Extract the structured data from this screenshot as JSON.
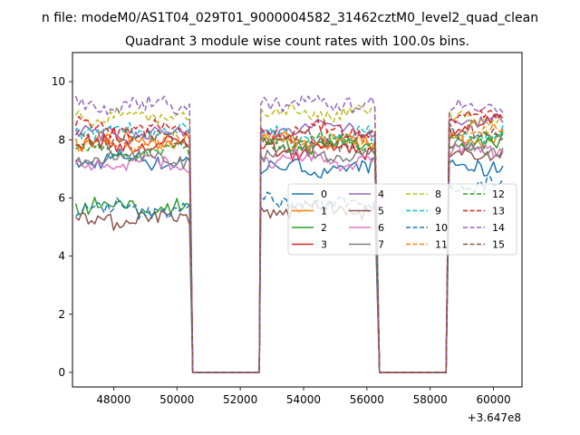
{
  "chart_data": {
    "type": "line",
    "suptitle": "n file: modeM0/AS1T04_029T01_9000004582_31462cztM0_level2_quad_clean",
    "title": "Quadrant 3 module wise count rates with 100.0s bins.",
    "xlabel": "",
    "ylabel": "",
    "x_offset_label": "+3.647e8",
    "xlim": [
      46700,
      60900
    ],
    "ylim": [
      -0.5,
      11.0
    ],
    "xticks": [
      48000,
      50000,
      52000,
      54000,
      56000,
      58000,
      60000
    ],
    "xtick_labels": [
      "48000",
      "50000",
      "52000",
      "54000",
      "56000",
      "58000",
      "60000"
    ],
    "yticks": [
      0,
      2,
      4,
      6,
      8,
      10
    ],
    "ytick_labels": [
      "0",
      "2",
      "4",
      "6",
      "8",
      "10"
    ],
    "grid": false,
    "legend_location": "center-right",
    "legend_columns": 4,
    "segments": [
      {
        "x_start": 46800,
        "x_end": 50400,
        "active": true
      },
      {
        "x_start": 50500,
        "x_end": 52600,
        "active": false
      },
      {
        "x_start": 52650,
        "x_end": 56300,
        "active": true
      },
      {
        "x_start": 56400,
        "x_end": 58500,
        "active": false
      },
      {
        "x_start": 58600,
        "x_end": 60300,
        "active": true
      }
    ],
    "series": [
      {
        "name": "0",
        "color": "#1f77b4",
        "dash": "solid",
        "levels": [
          7.3,
          7.0,
          7.1
        ]
      },
      {
        "name": "1",
        "color": "#ff7f0e",
        "dash": "solid",
        "levels": [
          8.0,
          7.9,
          8.1
        ]
      },
      {
        "name": "2",
        "color": "#2ca02c",
        "dash": "solid",
        "levels": [
          5.7,
          7.8,
          7.9
        ]
      },
      {
        "name": "3",
        "color": "#d62728",
        "dash": "solid",
        "levels": [
          7.8,
          7.7,
          8.5
        ]
      },
      {
        "name": "4",
        "color": "#9467bd",
        "dash": "solid",
        "levels": [
          8.2,
          8.4,
          8.6
        ]
      },
      {
        "name": "5",
        "color": "#8c564b",
        "dash": "solid",
        "levels": [
          5.3,
          5.6,
          7.4
        ]
      },
      {
        "name": "6",
        "color": "#e377c2",
        "dash": "solid",
        "levels": [
          7.2,
          7.3,
          7.6
        ]
      },
      {
        "name": "7",
        "color": "#7f7f7f",
        "dash": "solid",
        "levels": [
          7.4,
          7.5,
          7.7
        ]
      },
      {
        "name": "8",
        "color": "#bcbd22",
        "dash": "dashed",
        "levels": [
          8.8,
          8.9,
          8.7
        ]
      },
      {
        "name": "9",
        "color": "#17becf",
        "dash": "dashed",
        "levels": [
          8.3,
          8.1,
          8.2
        ]
      },
      {
        "name": "10",
        "color": "#1f77b4",
        "dash": "dashed",
        "levels": [
          5.6,
          5.8,
          6.5
        ]
      },
      {
        "name": "11",
        "color": "#ff7f0e",
        "dash": "dashed",
        "levels": [
          7.9,
          8.0,
          8.3
        ]
      },
      {
        "name": "12",
        "color": "#2ca02c",
        "dash": "dashed",
        "levels": [
          7.6,
          7.9,
          8.0
        ]
      },
      {
        "name": "13",
        "color": "#d62728",
        "dash": "dashed",
        "levels": [
          8.4,
          8.3,
          8.8
        ]
      },
      {
        "name": "14",
        "color": "#9467bd",
        "dash": "dashed",
        "levels": [
          9.2,
          9.3,
          9.1
        ]
      },
      {
        "name": "15",
        "color": "#8c564b",
        "dash": "dashed",
        "levels": [
          8.1,
          8.0,
          8.2
        ]
      }
    ]
  }
}
